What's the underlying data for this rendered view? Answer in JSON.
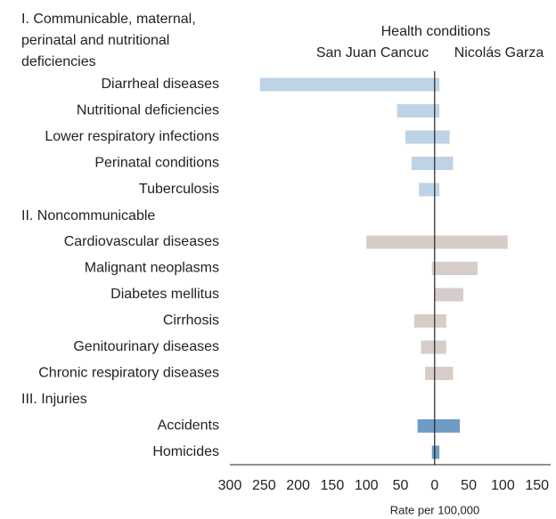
{
  "chart_data": {
    "type": "diverging-bar",
    "title": "Health conditions",
    "x_label": "Rate per 100,000",
    "series": [
      {
        "name": "San Juan Cancuc"
      },
      {
        "name": "Nicolás Garza"
      }
    ],
    "groups": [
      {
        "name": "I. Communicable, maternal, perinatal and nutritional deficiencies",
        "color": "#bfd3e6",
        "categories": [
          "Diarrheal diseases",
          "Nutritional deficiencies",
          "Lower respiratory infections",
          "Perinatal conditions",
          "Tuberculosis"
        ],
        "values": [
          [
            256,
            55,
            43,
            34,
            23
          ],
          [
            7,
            7,
            22,
            27,
            7
          ]
        ]
      },
      {
        "name": "II. Noncommunicable",
        "color": "#d7cdc8",
        "categories": [
          "Cardiovascular diseases",
          "Malignant neoplasms",
          "Diabetes mellitus",
          "Cirrhosis",
          "Genitourinary diseases",
          "Chronic respiratory diseases"
        ],
        "values": [
          [
            100,
            4,
            1,
            30,
            20,
            14
          ],
          [
            107,
            63,
            42,
            17,
            17,
            27
          ]
        ]
      },
      {
        "name": "III. Injuries",
        "color": "#6f9cc4",
        "categories": [
          "Accidents",
          "Homicides"
        ],
        "values": [
          [
            25,
            4
          ],
          [
            37,
            7
          ]
        ]
      }
    ],
    "xlim": [
      -300,
      170
    ],
    "xticks": [
      {
        "value": -300,
        "label": "300"
      },
      {
        "value": -250,
        "label": "250"
      },
      {
        "value": -200,
        "label": "200"
      },
      {
        "value": -150,
        "label": "150"
      },
      {
        "value": -100,
        "label": "100"
      },
      {
        "value": -50,
        "label": "50"
      },
      0,
      50,
      100,
      150
    ]
  }
}
